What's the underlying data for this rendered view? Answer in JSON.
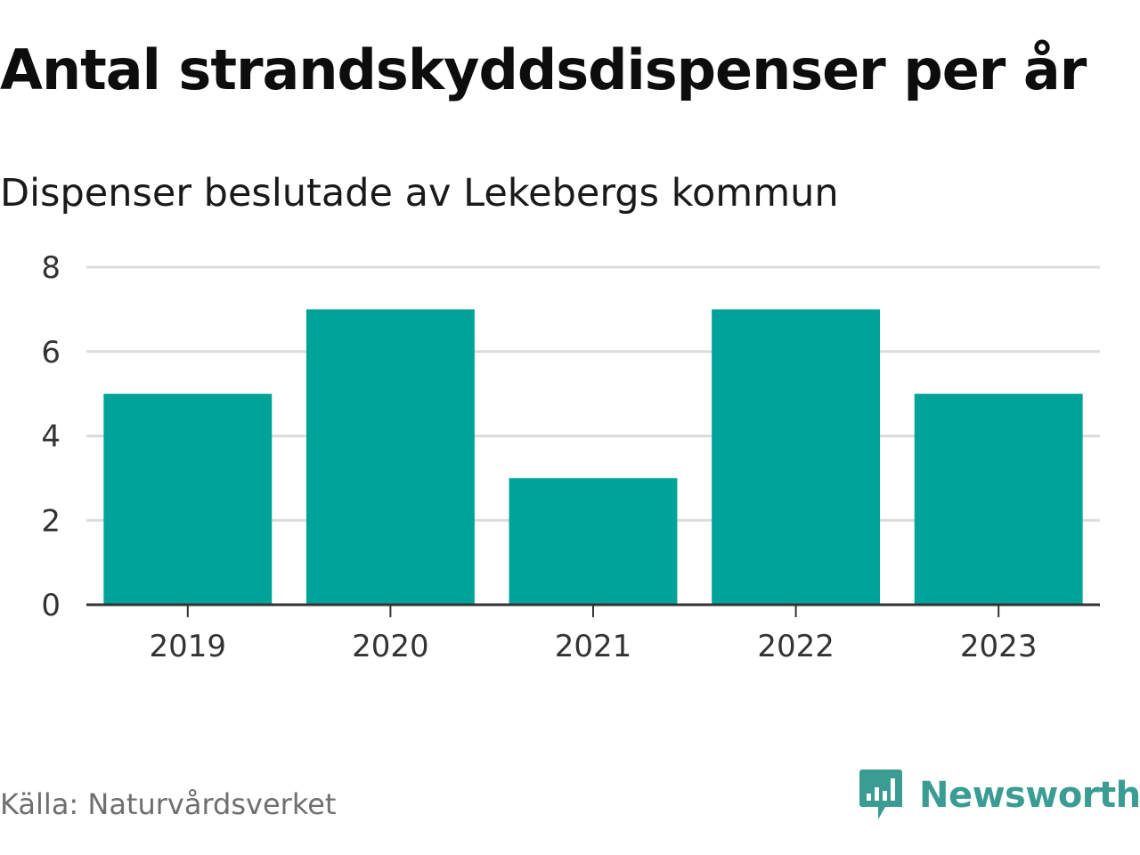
{
  "title": "Antal strandskyddsdispenser per år",
  "subtitle": "Dispenser beslutade av Lekebergs kommun",
  "source": "Källa: Naturvårdsverket",
  "brand": {
    "name": "Newsworthy",
    "color": "#3a9c92",
    "icon": "newsworthy-logo-icon"
  },
  "chart_data": {
    "type": "bar",
    "title": "Antal strandskyddsdispenser per år",
    "subtitle": "Dispenser beslutade av Lekebergs kommun",
    "xlabel": "",
    "ylabel": "",
    "categories": [
      "2019",
      "2020",
      "2021",
      "2022",
      "2023"
    ],
    "values": [
      5,
      7,
      3,
      7,
      5
    ],
    "ylim": [
      0,
      8
    ],
    "yticks": [
      "0",
      "2",
      "4",
      "6",
      "8"
    ],
    "grid": true,
    "bar_color": "#00a39a"
  }
}
